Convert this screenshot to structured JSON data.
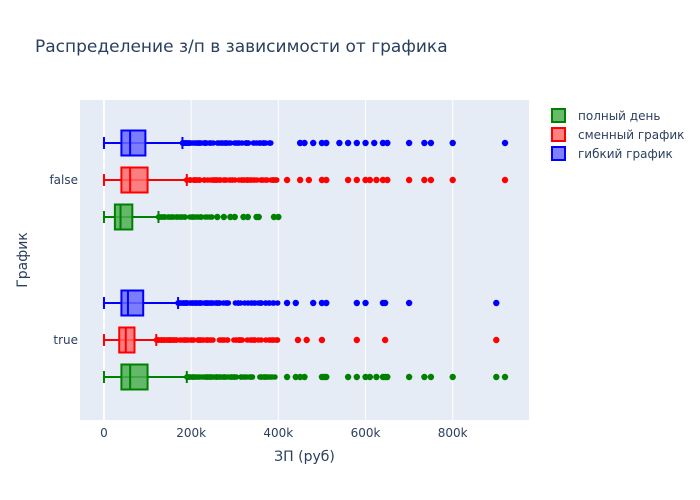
{
  "chart_data": {
    "type": "box",
    "orientation": "horizontal",
    "title": "Распределение з/п в зависимости от графика",
    "xlabel": "ЗП (руб)",
    "ylabel": "График",
    "categories": [
      "false",
      "true"
    ],
    "xlim": [
      -55000,
      975000
    ],
    "xticks": [
      0,
      200000,
      400000,
      600000,
      800000
    ],
    "xtick_labels": [
      "0",
      "200k",
      "400k",
      "600k",
      "800k"
    ],
    "grid": true,
    "legend_position": "top-right",
    "series": [
      {
        "name": "полный день",
        "color": "#008000",
        "fill": "#4caf50",
        "boxes": [
          {
            "category": "false",
            "min": 0,
            "q1": 25000,
            "median": 38000,
            "q3": 65000,
            "max": 125000,
            "outlier_range": [
              125000,
              250000
            ],
            "outliers": [
              260000,
              275000,
              290000,
              300000,
              320000,
              330000,
              350000,
              355000,
              390000,
              400000
            ]
          },
          {
            "category": "true",
            "min": 0,
            "q1": 40000,
            "median": 60000,
            "q3": 100000,
            "max": 190000,
            "outlier_range": [
              190000,
              400000
            ],
            "outliers": [
              420000,
              440000,
              450000,
              460000,
              500000,
              505000,
              510000,
              560000,
              580000,
              600000,
              610000,
              625000,
              640000,
              645000,
              650000,
              700000,
              735000,
              750000,
              800000,
              900000,
              920000
            ]
          }
        ]
      },
      {
        "name": "сменный график",
        "color": "#ff0000",
        "fill": "#ff6b6b",
        "boxes": [
          {
            "category": "false",
            "min": 0,
            "q1": 40000,
            "median": 60000,
            "q3": 100000,
            "max": 190000,
            "outlier_range": [
              190000,
              400000
            ],
            "outliers": [
              420000,
              450000,
              470000,
              500000,
              510000,
              560000,
              580000,
              600000,
              610000,
              625000,
              640000,
              650000,
              700000,
              735000,
              750000,
              800000,
              920000
            ]
          },
          {
            "category": "true",
            "min": 0,
            "q1": 35000,
            "median": 50000,
            "q3": 70000,
            "max": 120000,
            "outlier_range": [
              120000,
              400000
            ],
            "outliers": [
              445000,
              465000,
              500000,
              580000,
              645000,
              900000
            ]
          }
        ]
      },
      {
        "name": "гибкий график",
        "color": "#0000ff",
        "fill": "#6a6aff",
        "boxes": [
          {
            "category": "false",
            "min": 0,
            "q1": 40000,
            "median": 60000,
            "q3": 95000,
            "max": 180000,
            "outlier_range": [
              180000,
              400000
            ],
            "outliers": [
              450000,
              460000,
              480000,
              500000,
              510000,
              540000,
              560000,
              580000,
              600000,
              620000,
              640000,
              650000,
              700000,
              735000,
              750000,
              800000,
              920000
            ]
          },
          {
            "category": "true",
            "min": 0,
            "q1": 40000,
            "median": 55000,
            "q3": 90000,
            "max": 170000,
            "outlier_range": [
              170000,
              400000
            ],
            "outliers": [
              420000,
              440000,
              480000,
              500000,
              510000,
              580000,
              600000,
              640000,
              645000,
              700000,
              900000
            ]
          }
        ]
      }
    ]
  }
}
